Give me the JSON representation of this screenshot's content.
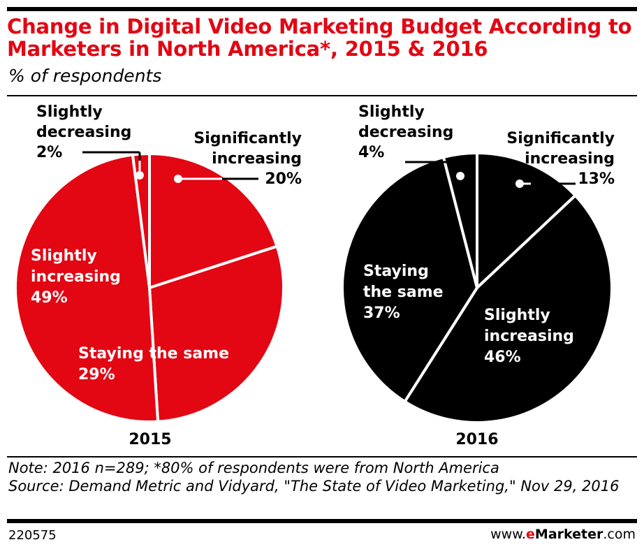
{
  "header": {
    "title": "Change in Digital Video Marketing Budget According to Marketers in North America*, 2015 & 2016",
    "subtitle": "% of respondents"
  },
  "chart_data": [
    {
      "type": "pie",
      "year_label": "2015",
      "color": "#e30613",
      "label_color": "#ffffff",
      "slices": [
        {
          "name": "Significantly increasing",
          "value": 20,
          "label": "20%",
          "label_lines": [
            "Significantly",
            "increasing"
          ]
        },
        {
          "name": "Staying the same",
          "value": 29,
          "label": "29%",
          "label_lines": [
            "Staying the same"
          ]
        },
        {
          "name": "Slightly increasing",
          "value": 49,
          "label": "49%",
          "label_lines": [
            "Slightly",
            "increasing"
          ]
        },
        {
          "name": "Slightly decreasing",
          "value": 2,
          "label": "2%",
          "label_lines": [
            "Slightly",
            "decreasing"
          ]
        }
      ]
    },
    {
      "type": "pie",
      "year_label": "2016",
      "color": "#000000",
      "label_color": "#ffffff",
      "slices": [
        {
          "name": "Significantly increasing",
          "value": 13,
          "label": "13%",
          "label_lines": [
            "Significantly",
            "increasing"
          ]
        },
        {
          "name": "Slightly increasing",
          "value": 46,
          "label": "46%",
          "label_lines": [
            "Slightly",
            "increasing"
          ]
        },
        {
          "name": "Staying the same",
          "value": 37,
          "label": "37%",
          "label_lines": [
            "Staying",
            "the same"
          ]
        },
        {
          "name": "Slightly decreasing",
          "value": 4,
          "label": "4%",
          "label_lines": [
            "Slightly",
            "decreasing"
          ]
        }
      ]
    }
  ],
  "footer": {
    "note": "Note: 2016 n=289; *80% of respondents were from North America",
    "source": "Source: Demand Metric and Vidyard, \"The State of Video Marketing,\" Nov 29, 2016",
    "chart_id": "220575",
    "brand_prefix": "www.",
    "brand_e": "e",
    "brand_name": "Marketer",
    "brand_suffix": ".com"
  }
}
